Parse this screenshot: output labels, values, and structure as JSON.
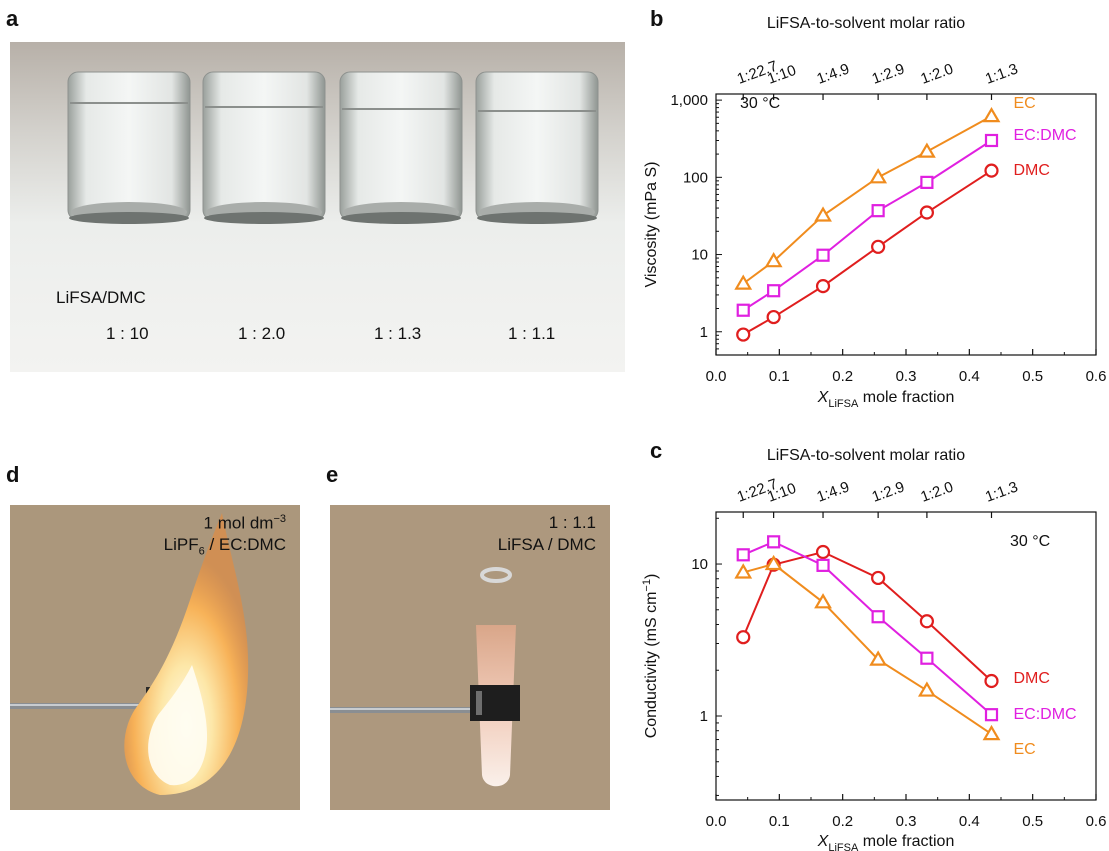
{
  "panels": {
    "a": {
      "letter": "a",
      "label": "LiFSA/DMC",
      "ratios": [
        "1 : 10",
        "1 : 2.0",
        "1 : 1.3",
        "1 : 1.1"
      ]
    },
    "b": {
      "letter": "b"
    },
    "c": {
      "letter": "c"
    },
    "d": {
      "letter": "d",
      "line1_main": "1 mol dm",
      "line1_sup": "−3",
      "line2_a": "LiPF",
      "line2_sub": "6",
      "line2_b": " / EC:DMC"
    },
    "e": {
      "letter": "e",
      "line1": "1 : 1.1",
      "line2": "LiFSA / DMC"
    }
  },
  "colors": {
    "EC": "#f08c1e",
    "EC:DMC": "#e020e0",
    "DMC": "#e01e1e"
  },
  "chart_data": [
    {
      "type": "line",
      "panel": "b",
      "top_axis_title": "LiFSA-to-solvent molar ratio",
      "top_ticks": [
        {
          "x": 0.043,
          "label": "1:22.7"
        },
        {
          "x": 0.091,
          "label": "1:10"
        },
        {
          "x": 0.169,
          "label": "1:4.9"
        },
        {
          "x": 0.256,
          "label": "1:2.9"
        },
        {
          "x": 0.333,
          "label": "1:2.0"
        },
        {
          "x": 0.435,
          "label": "1:1.3"
        }
      ],
      "xlabel_main": "X",
      "xlabel_sub": "LiFSA",
      "xlabel_rest": " mole fraction",
      "ylabel": "Viscosity (mPa S)",
      "xlim": [
        0.0,
        0.6
      ],
      "x_ticks": [
        "0.0",
        "0.1",
        "0.2",
        "0.3",
        "0.4",
        "0.5",
        "0.6"
      ],
      "ylim": [
        0.5,
        1200
      ],
      "y_scale": "log",
      "y_ticks": [
        {
          "v": 1,
          "label": "1"
        },
        {
          "v": 10,
          "label": "10"
        },
        {
          "v": 100,
          "label": "100"
        },
        {
          "v": 1000,
          "label": "1,000"
        }
      ],
      "annotation": "30 °C",
      "series": [
        {
          "name": "EC",
          "marker": "triangle",
          "x": [
            0.043,
            0.091,
            0.169,
            0.256,
            0.333,
            0.435
          ],
          "y": [
            4.2,
            8.2,
            32,
            100,
            215,
            620
          ]
        },
        {
          "name": "EC:DMC",
          "marker": "square",
          "x": [
            0.043,
            0.091,
            0.169,
            0.256,
            0.333,
            0.435
          ],
          "y": [
            1.9,
            3.4,
            9.8,
            37,
            86,
            300
          ]
        },
        {
          "name": "DMC",
          "marker": "circle",
          "x": [
            0.043,
            0.091,
            0.169,
            0.256,
            0.333,
            0.435
          ],
          "y": [
            0.92,
            1.55,
            3.9,
            12.6,
            35,
            122
          ]
        }
      ]
    },
    {
      "type": "line",
      "panel": "c",
      "top_axis_title": "LiFSA-to-solvent molar ratio",
      "top_ticks": [
        {
          "x": 0.043,
          "label": "1:22.7"
        },
        {
          "x": 0.091,
          "label": "1:10"
        },
        {
          "x": 0.169,
          "label": "1:4.9"
        },
        {
          "x": 0.256,
          "label": "1:2.9"
        },
        {
          "x": 0.333,
          "label": "1:2.0"
        },
        {
          "x": 0.435,
          "label": "1:1.3"
        }
      ],
      "xlabel_main": "X",
      "xlabel_sub": "LiFSA",
      "xlabel_rest": " mole fraction",
      "ylabel": "Conductivity (mS cm",
      "ylabel_sup": "−1",
      "ylabel_end": ")",
      "xlim": [
        0.0,
        0.6
      ],
      "x_ticks": [
        "0.0",
        "0.1",
        "0.2",
        "0.3",
        "0.4",
        "0.5",
        "0.6"
      ],
      "ylim": [
        0.28,
        22
      ],
      "y_scale": "log",
      "y_ticks": [
        {
          "v": 1,
          "label": "1"
        },
        {
          "v": 10,
          "label": "10"
        }
      ],
      "annotation": "30 °C",
      "series": [
        {
          "name": "DMC",
          "marker": "circle",
          "x": [
            0.043,
            0.091,
            0.169,
            0.256,
            0.333,
            0.435
          ],
          "y": [
            3.3,
            9.9,
            12.0,
            8.1,
            4.2,
            1.7
          ]
        },
        {
          "name": "EC:DMC",
          "marker": "square",
          "x": [
            0.043,
            0.091,
            0.169,
            0.256,
            0.333,
            0.435
          ],
          "y": [
            11.5,
            14.0,
            9.8,
            4.5,
            2.4,
            1.02
          ]
        },
        {
          "name": "EC",
          "marker": "triangle",
          "x": [
            0.043,
            0.091,
            0.169,
            0.256,
            0.333,
            0.435
          ],
          "y": [
            8.8,
            10.0,
            5.6,
            2.35,
            1.47,
            0.76
          ]
        }
      ]
    }
  ]
}
